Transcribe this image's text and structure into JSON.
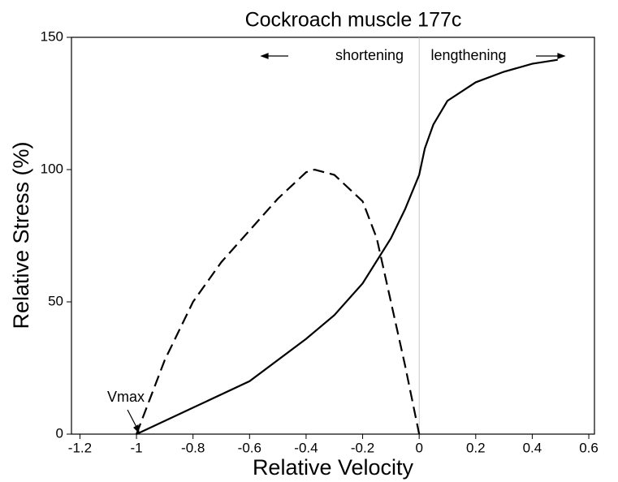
{
  "chart_data": {
    "type": "line",
    "title": "Cockroach muscle 177c",
    "xlabel": "Relative Velocity",
    "ylabel": "Relative Stress (%)",
    "xlim": [
      -1.23,
      0.62
    ],
    "ylim": [
      0,
      150
    ],
    "xticks": [
      -1.2,
      -1,
      -0.8,
      -0.6,
      -0.4,
      -0.2,
      0,
      0.2,
      0.4,
      0.6
    ],
    "yticks": [
      0,
      50,
      100,
      150
    ],
    "series": [
      {
        "color": "#000000",
        "dash": "solid",
        "x": [
          -1,
          -0.8,
          -0.6,
          -0.4,
          -0.3,
          -0.2,
          -0.1,
          -0.05,
          0,
          0.02,
          0.05,
          0.1,
          0.2,
          0.3,
          0.4,
          0.49
        ],
        "values": [
          0,
          10,
          20,
          36,
          45,
          57,
          74,
          85,
          98,
          108,
          117,
          126,
          133,
          137,
          140,
          141.5
        ]
      },
      {
        "color": "#000000",
        "dash": "dashed",
        "x": [
          -1,
          -0.9,
          -0.8,
          -0.7,
          -0.6,
          -0.5,
          -0.4,
          -0.37,
          -0.3,
          -0.2,
          -0.15,
          -0.1,
          -0.05,
          0
        ],
        "values": [
          0,
          28,
          50,
          65,
          77,
          89,
          99,
          100,
          98,
          88,
          74,
          50,
          26,
          0
        ]
      }
    ],
    "annotations": [
      "shortening",
      "lengthening",
      "Vmax"
    ]
  }
}
